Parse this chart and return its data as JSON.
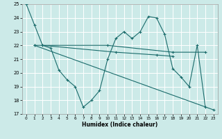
{
  "xlabel": "Humidex (Indice chaleur)",
  "xlim": [
    -0.5,
    23.5
  ],
  "ylim": [
    17,
    25
  ],
  "yticks": [
    17,
    18,
    19,
    20,
    21,
    22,
    23,
    24,
    25
  ],
  "xticks": [
    0,
    1,
    2,
    3,
    4,
    5,
    6,
    7,
    8,
    9,
    10,
    11,
    12,
    13,
    14,
    15,
    16,
    17,
    18,
    19,
    20,
    21,
    22,
    23
  ],
  "bg_color": "#cceae8",
  "grid_color": "#ffffff",
  "line_color": "#1a6b6b",
  "line1_x": [
    0,
    1,
    2,
    3,
    4,
    5,
    6,
    7,
    8,
    9,
    10,
    11,
    12,
    13,
    14,
    15,
    16,
    17,
    18,
    19,
    20,
    21,
    22
  ],
  "line1_y": [
    25,
    23.5,
    22,
    21.8,
    20.2,
    19.5,
    19.0,
    17.5,
    18.0,
    18.7,
    21.0,
    22.5,
    23.0,
    22.5,
    23.0,
    24.1,
    24.0,
    22.8,
    20.3,
    19.7,
    19.0,
    22.0,
    17.5
  ],
  "line2_x": [
    1,
    10,
    18,
    22
  ],
  "line2_y": [
    22,
    22,
    21.5,
    21.5
  ],
  "line3_x": [
    2,
    11,
    16,
    18
  ],
  "line3_y": [
    22,
    21.5,
    21.3,
    21.2
  ],
  "line4_x": [
    1,
    23
  ],
  "line4_y": [
    22,
    17.3
  ]
}
